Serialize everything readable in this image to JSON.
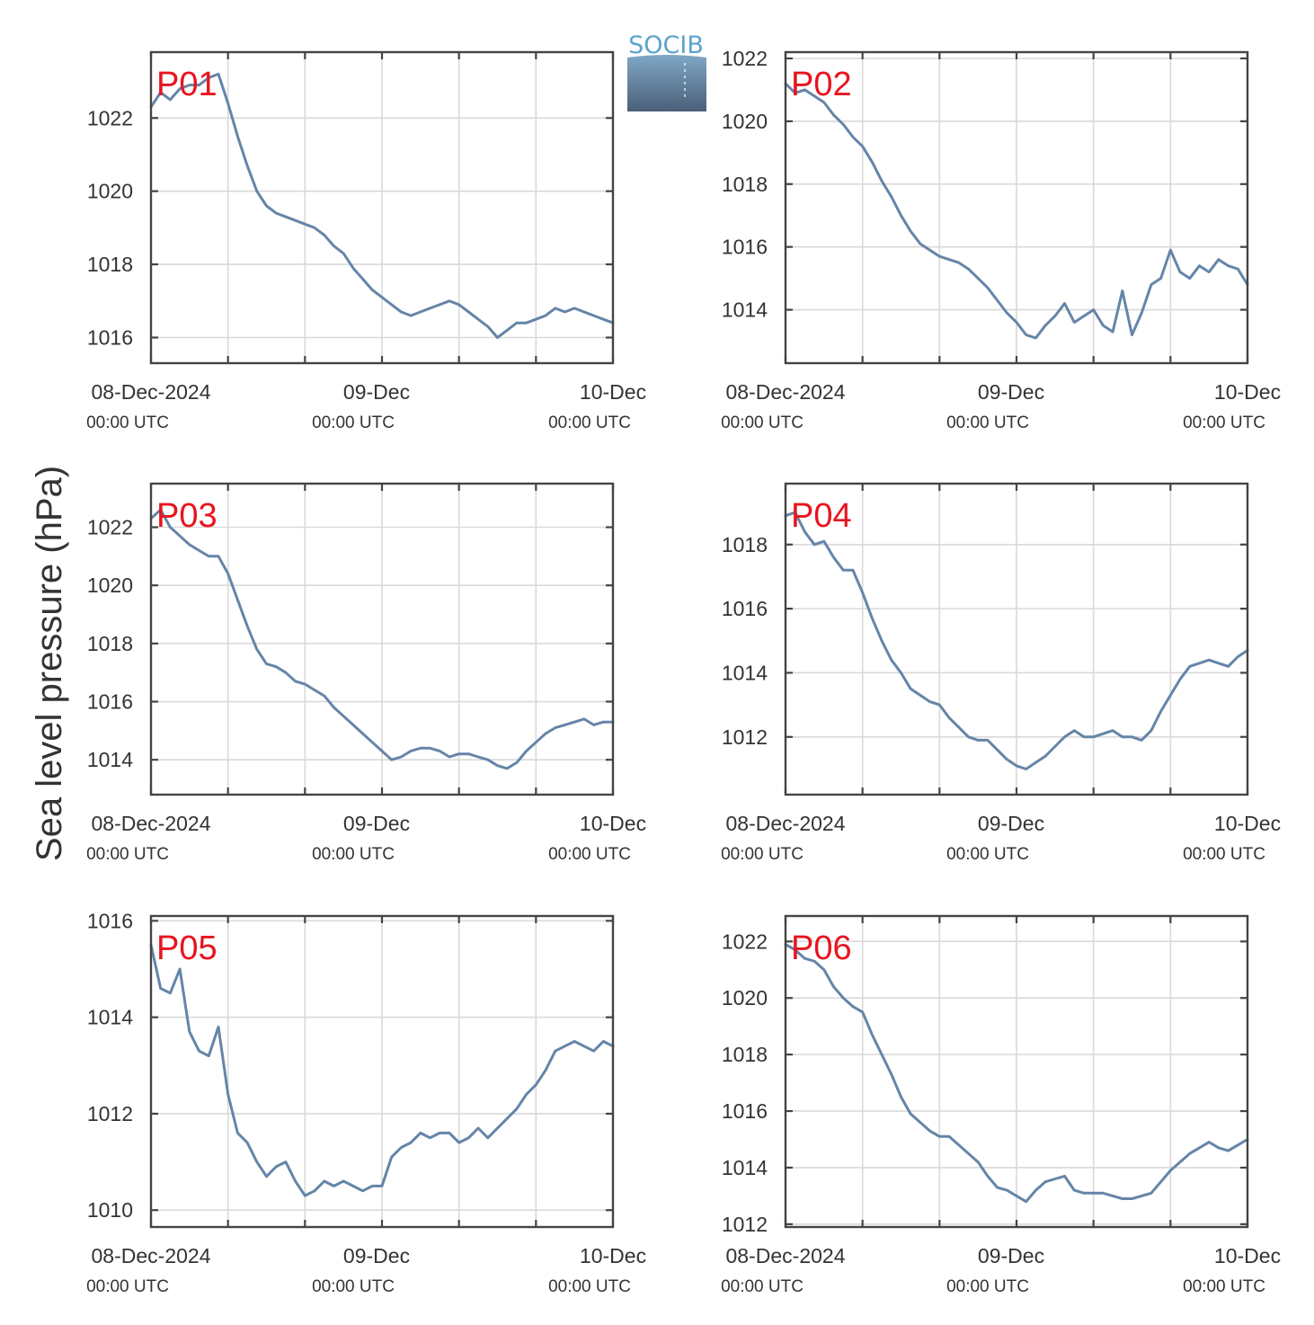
{
  "ylabel": "Sea level pressure (hPa)",
  "logo": {
    "text": "SOCIB",
    "colors": {
      "text": "#5ba3cc",
      "top": "#7fa8c6",
      "bottom": "#4a5f78"
    }
  },
  "colors": {
    "series": "#6585a8",
    "panel_label": "#e8141e",
    "grid": "#d9d9d9",
    "frame": "#444444"
  },
  "x_ticks": [
    {
      "hour": 0,
      "label": "08-Dec-2024",
      "sub": "00:00 UTC"
    },
    {
      "hour": 24,
      "label": "09-Dec",
      "sub": "00:00 UTC"
    },
    {
      "hour": 48,
      "label": "10-Dec",
      "sub": "00:00 UTC"
    }
  ],
  "x_grid_hours": [
    8,
    16,
    24,
    32,
    40,
    48
  ],
  "chart_data": [
    {
      "type": "line",
      "label": "P01",
      "xlim": [
        0,
        48
      ],
      "ylim": [
        1015.3,
        1023.8
      ],
      "yticks": [
        1016,
        1018,
        1020,
        1022
      ],
      "x": [
        0,
        1,
        2,
        3,
        4,
        5,
        6,
        7,
        8,
        9,
        10,
        11,
        12,
        13,
        14,
        15,
        16,
        17,
        18,
        19,
        20,
        21,
        22,
        23,
        24,
        25,
        26,
        27,
        28,
        29,
        30,
        31,
        32,
        33,
        34,
        35,
        36,
        37,
        38,
        39,
        40,
        41,
        42,
        43,
        44,
        45,
        46,
        47,
        48
      ],
      "values": [
        1022.3,
        1022.7,
        1022.5,
        1022.8,
        1022.9,
        1022.9,
        1023.1,
        1023.2,
        1022.4,
        1021.5,
        1020.7,
        1020.0,
        1019.6,
        1019.4,
        1019.3,
        1019.2,
        1019.1,
        1019.0,
        1018.8,
        1018.5,
        1018.3,
        1017.9,
        1017.6,
        1017.3,
        1017.1,
        1016.9,
        1016.7,
        1016.6,
        1016.7,
        1016.8,
        1016.9,
        1017.0,
        1016.9,
        1016.7,
        1016.5,
        1016.3,
        1016.0,
        1016.2,
        1016.4,
        1016.4,
        1016.5,
        1016.6,
        1016.8,
        1016.7,
        1016.8,
        1016.7,
        1016.6,
        1016.5,
        1016.4
      ]
    },
    {
      "type": "line",
      "label": "P02",
      "xlim": [
        0,
        48
      ],
      "ylim": [
        1012.3,
        1022.2
      ],
      "yticks": [
        1014,
        1016,
        1018,
        1020,
        1022
      ],
      "x": [
        0,
        1,
        2,
        3,
        4,
        5,
        6,
        7,
        8,
        9,
        10,
        11,
        12,
        13,
        14,
        15,
        16,
        17,
        18,
        19,
        20,
        21,
        22,
        23,
        24,
        25,
        26,
        27,
        28,
        29,
        30,
        31,
        32,
        33,
        34,
        35,
        36,
        37,
        38,
        39,
        40,
        41,
        42,
        43,
        44,
        45,
        46,
        47,
        48
      ],
      "values": [
        1021.2,
        1020.9,
        1021.0,
        1020.8,
        1020.6,
        1020.2,
        1019.9,
        1019.5,
        1019.2,
        1018.7,
        1018.1,
        1017.6,
        1017.0,
        1016.5,
        1016.1,
        1015.9,
        1015.7,
        1015.6,
        1015.5,
        1015.3,
        1015.0,
        1014.7,
        1014.3,
        1013.9,
        1013.6,
        1013.2,
        1013.1,
        1013.5,
        1013.8,
        1014.2,
        1013.6,
        1013.8,
        1014.0,
        1013.5,
        1013.3,
        1014.6,
        1013.2,
        1013.9,
        1014.8,
        1015.0,
        1015.9,
        1015.2,
        1015.0,
        1015.4,
        1015.2,
        1015.6,
        1015.4,
        1015.3,
        1014.8
      ]
    },
    {
      "type": "line",
      "label": "P03",
      "xlim": [
        0,
        48
      ],
      "ylim": [
        1012.8,
        1023.5
      ],
      "yticks": [
        1014,
        1016,
        1018,
        1020,
        1022
      ],
      "x": [
        0,
        1,
        2,
        3,
        4,
        5,
        6,
        7,
        8,
        9,
        10,
        11,
        12,
        13,
        14,
        15,
        16,
        17,
        18,
        19,
        20,
        21,
        22,
        23,
        24,
        25,
        26,
        27,
        28,
        29,
        30,
        31,
        32,
        33,
        34,
        35,
        36,
        37,
        38,
        39,
        40,
        41,
        42,
        43,
        44,
        45,
        46,
        47,
        48
      ],
      "values": [
        1022.3,
        1022.6,
        1022.0,
        1021.7,
        1021.4,
        1021.2,
        1021.0,
        1021.0,
        1020.4,
        1019.5,
        1018.6,
        1017.8,
        1017.3,
        1017.2,
        1017.0,
        1016.7,
        1016.6,
        1016.4,
        1016.2,
        1015.8,
        1015.5,
        1015.2,
        1014.9,
        1014.6,
        1014.3,
        1014.0,
        1014.1,
        1014.3,
        1014.4,
        1014.4,
        1014.3,
        1014.1,
        1014.2,
        1014.2,
        1014.1,
        1014.0,
        1013.8,
        1013.7,
        1013.9,
        1014.3,
        1014.6,
        1014.9,
        1015.1,
        1015.2,
        1015.3,
        1015.4,
        1015.2,
        1015.3,
        1015.3
      ]
    },
    {
      "type": "line",
      "label": "P04",
      "xlim": [
        0,
        48
      ],
      "ylim": [
        1010.2,
        1019.9
      ],
      "yticks": [
        1012,
        1014,
        1016,
        1018
      ],
      "x": [
        0,
        1,
        2,
        3,
        4,
        5,
        6,
        7,
        8,
        9,
        10,
        11,
        12,
        13,
        14,
        15,
        16,
        17,
        18,
        19,
        20,
        21,
        22,
        23,
        24,
        25,
        26,
        27,
        28,
        29,
        30,
        31,
        32,
        33,
        34,
        35,
        36,
        37,
        38,
        39,
        40,
        41,
        42,
        43,
        44,
        45,
        46,
        47,
        48
      ],
      "values": [
        1018.9,
        1019.0,
        1018.4,
        1018.0,
        1018.1,
        1017.6,
        1017.2,
        1017.2,
        1016.5,
        1015.7,
        1015.0,
        1014.4,
        1014.0,
        1013.5,
        1013.3,
        1013.1,
        1013.0,
        1012.6,
        1012.3,
        1012.0,
        1011.9,
        1011.9,
        1011.6,
        1011.3,
        1011.1,
        1011.0,
        1011.2,
        1011.4,
        1011.7,
        1012.0,
        1012.2,
        1012.0,
        1012.0,
        1012.1,
        1012.2,
        1012.0,
        1012.0,
        1011.9,
        1012.2,
        1012.8,
        1013.3,
        1013.8,
        1014.2,
        1014.3,
        1014.4,
        1014.3,
        1014.2,
        1014.5,
        1014.7
      ]
    },
    {
      "type": "line",
      "label": "P05",
      "xlim": [
        0,
        48
      ],
      "ylim": [
        1009.65,
        1016.1
      ],
      "yticks": [
        1010,
        1012,
        1014,
        1016
      ],
      "x": [
        0,
        1,
        2,
        3,
        4,
        5,
        6,
        7,
        8,
        9,
        10,
        11,
        12,
        13,
        14,
        15,
        16,
        17,
        18,
        19,
        20,
        21,
        22,
        23,
        24,
        25,
        26,
        27,
        28,
        29,
        30,
        31,
        32,
        33,
        34,
        35,
        36,
        37,
        38,
        39,
        40,
        41,
        42,
        43,
        44,
        45,
        46,
        47,
        48
      ],
      "values": [
        1015.5,
        1014.6,
        1014.5,
        1015.0,
        1013.7,
        1013.3,
        1013.2,
        1013.8,
        1012.4,
        1011.6,
        1011.4,
        1011.0,
        1010.7,
        1010.9,
        1011.0,
        1010.6,
        1010.3,
        1010.4,
        1010.6,
        1010.5,
        1010.6,
        1010.5,
        1010.4,
        1010.5,
        1010.5,
        1011.1,
        1011.3,
        1011.4,
        1011.6,
        1011.5,
        1011.6,
        1011.6,
        1011.4,
        1011.5,
        1011.7,
        1011.5,
        1011.7,
        1011.9,
        1012.1,
        1012.4,
        1012.6,
        1012.9,
        1013.3,
        1013.4,
        1013.5,
        1013.4,
        1013.3,
        1013.5,
        1013.4
      ]
    },
    {
      "type": "line",
      "label": "P06",
      "xlim": [
        0,
        48
      ],
      "ylim": [
        1011.9,
        1022.9
      ],
      "yticks": [
        1012,
        1014,
        1016,
        1018,
        1020,
        1022
      ],
      "x": [
        0,
        1,
        2,
        3,
        4,
        5,
        6,
        7,
        8,
        9,
        10,
        11,
        12,
        13,
        14,
        15,
        16,
        17,
        18,
        19,
        20,
        21,
        22,
        23,
        24,
        25,
        26,
        27,
        28,
        29,
        30,
        31,
        32,
        33,
        34,
        35,
        36,
        37,
        38,
        39,
        40,
        41,
        42,
        43,
        44,
        45,
        46,
        47,
        48
      ],
      "values": [
        1021.9,
        1021.7,
        1021.4,
        1021.3,
        1021.0,
        1020.4,
        1020.0,
        1019.7,
        1019.5,
        1018.7,
        1018.0,
        1017.3,
        1016.5,
        1015.9,
        1015.6,
        1015.3,
        1015.1,
        1015.1,
        1014.8,
        1014.5,
        1014.2,
        1013.7,
        1013.3,
        1013.2,
        1013.0,
        1012.8,
        1013.2,
        1013.5,
        1013.6,
        1013.7,
        1013.2,
        1013.1,
        1013.1,
        1013.1,
        1013.0,
        1012.9,
        1012.9,
        1013.0,
        1013.1,
        1013.5,
        1013.9,
        1014.2,
        1014.5,
        1014.7,
        1014.9,
        1014.7,
        1014.6,
        1014.8,
        1015.0
      ]
    }
  ]
}
